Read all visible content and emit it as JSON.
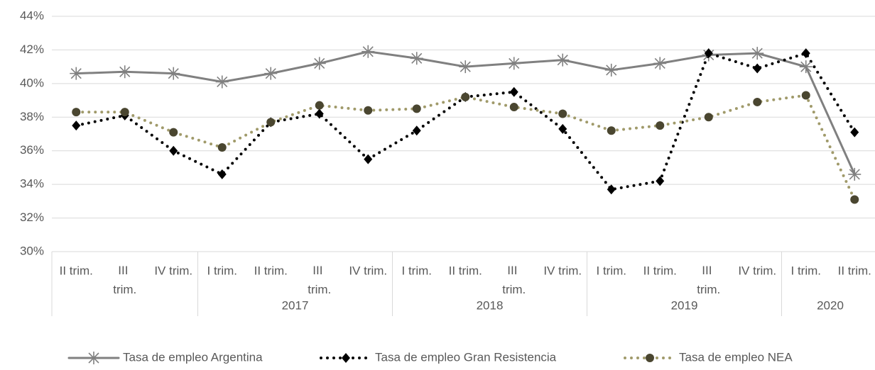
{
  "chart_data": {
    "type": "line",
    "category_groups": [
      {
        "name": null,
        "categories": [
          "II trim.",
          "III trim.",
          "IV trim."
        ]
      },
      {
        "name": "2017",
        "categories": [
          "I trim.",
          "II trim.",
          "III trim.",
          "IV trim."
        ]
      },
      {
        "name": "2018",
        "categories": [
          "I trim.",
          "II trim.",
          "III trim.",
          "IV trim."
        ]
      },
      {
        "name": "2019",
        "categories": [
          "I trim.",
          "II trim.",
          "III trim.",
          "IV trim."
        ]
      },
      {
        "name": "2020",
        "categories": [
          "I trim.",
          "II trim."
        ]
      }
    ],
    "series": [
      {
        "name": "Tasa de empleo Argentina",
        "color": "#808080",
        "marker": "asterisk",
        "dash": "solid",
        "values": [
          40.6,
          40.7,
          40.6,
          40.1,
          40.6,
          41.2,
          41.9,
          41.5,
          41.0,
          41.2,
          41.4,
          40.8,
          41.2,
          41.7,
          41.8,
          41.0,
          34.6
        ]
      },
      {
        "name": "Tasa de empleo Gran Resistencia",
        "color": "#000000",
        "marker": "diamond",
        "dash": "dotted",
        "values": [
          37.5,
          38.1,
          36.0,
          34.6,
          37.7,
          38.2,
          35.5,
          37.2,
          39.2,
          39.5,
          37.3,
          33.7,
          34.2,
          41.8,
          40.9,
          41.8,
          37.1
        ]
      },
      {
        "name": "Tasa de empleo NEA",
        "color": "#a09a6a",
        "marker_color": "#4a4630",
        "marker": "circle",
        "dash": "dotted",
        "values": [
          38.3,
          38.3,
          37.1,
          36.2,
          37.7,
          38.7,
          38.4,
          38.5,
          39.2,
          38.6,
          38.2,
          37.2,
          37.5,
          38.0,
          38.9,
          39.3,
          33.1
        ]
      }
    ],
    "ylim": [
      30,
      44
    ],
    "yticks": [
      {
        "value": 30,
        "label": "30%"
      },
      {
        "value": 32,
        "label": "32%"
      },
      {
        "value": 34,
        "label": "34%"
      },
      {
        "value": 36,
        "label": "36%"
      },
      {
        "value": 38,
        "label": "38%"
      },
      {
        "value": 40,
        "label": "40%"
      },
      {
        "value": 42,
        "label": "42%"
      },
      {
        "value": 44,
        "label": "44%"
      }
    ],
    "grid": true,
    "legend": "bottom"
  }
}
